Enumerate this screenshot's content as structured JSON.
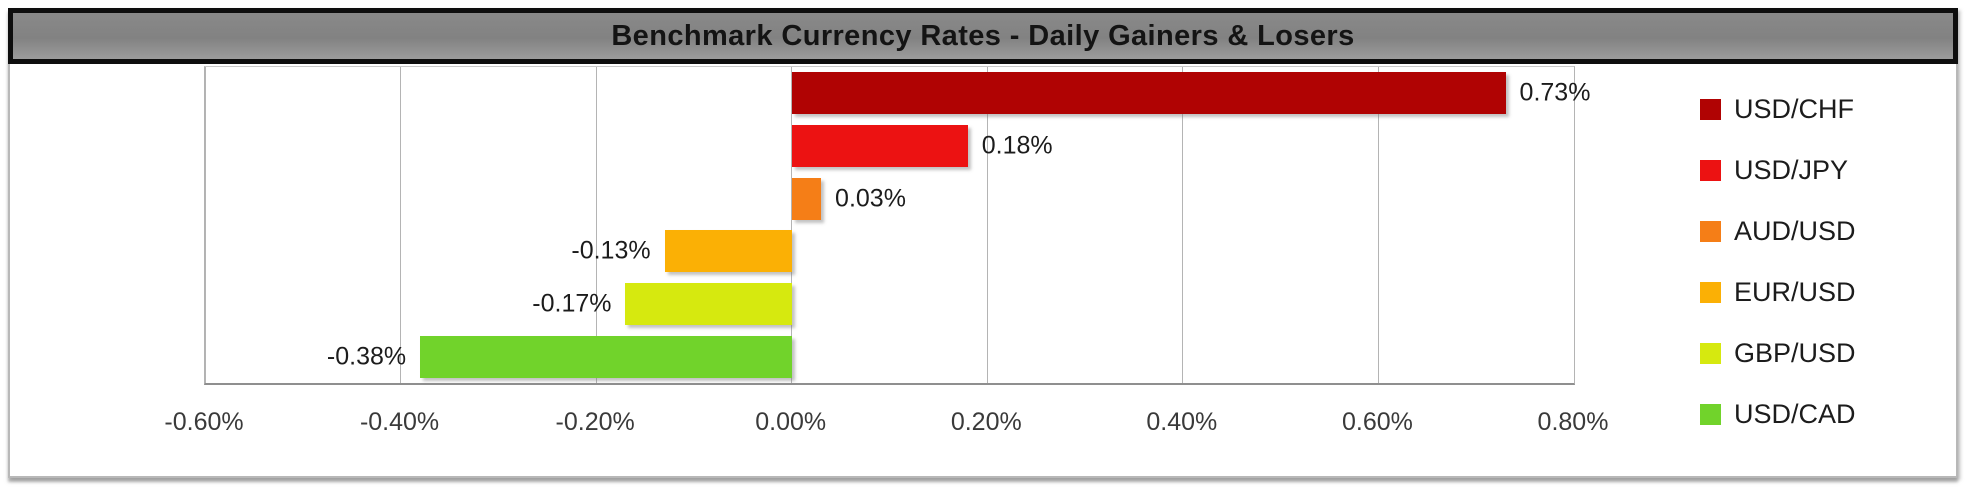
{
  "title": "Benchmark Currency Rates - Daily Gainers & Losers",
  "chart_data": {
    "type": "bar",
    "orientation": "horizontal",
    "title": "Benchmark Currency Rates - Daily Gainers & Losers",
    "xlim": [
      -0.6,
      0.8
    ],
    "grid": "vertical",
    "legend_position": "right",
    "series": [
      {
        "name": "USD/CHF",
        "value": 0.73,
        "value_label": "0.73%",
        "color": "#B00303"
      },
      {
        "name": "USD/JPY",
        "value": 0.18,
        "value_label": "0.18%",
        "color": "#EC1212"
      },
      {
        "name": "AUD/USD",
        "value": 0.03,
        "value_label": "0.03%",
        "color": "#F57E17"
      },
      {
        "name": "EUR/USD",
        "value": -0.13,
        "value_label": "-0.13%",
        "color": "#FBB005"
      },
      {
        "name": "GBP/USD",
        "value": -0.17,
        "value_label": "-0.17%",
        "color": "#D6E90F"
      },
      {
        "name": "USD/CAD",
        "value": -0.38,
        "value_label": "-0.38%",
        "color": "#71D32B"
      }
    ],
    "x_ticks": [
      {
        "value": -0.6,
        "label": "-0.60%"
      },
      {
        "value": -0.4,
        "label": "-0.40%"
      },
      {
        "value": -0.2,
        "label": "-0.20%"
      },
      {
        "value": 0.0,
        "label": "0.00%"
      },
      {
        "value": 0.2,
        "label": "0.20%"
      },
      {
        "value": 0.4,
        "label": "0.40%"
      },
      {
        "value": 0.6,
        "label": "0.60%"
      },
      {
        "value": 0.8,
        "label": "0.80%"
      }
    ]
  }
}
